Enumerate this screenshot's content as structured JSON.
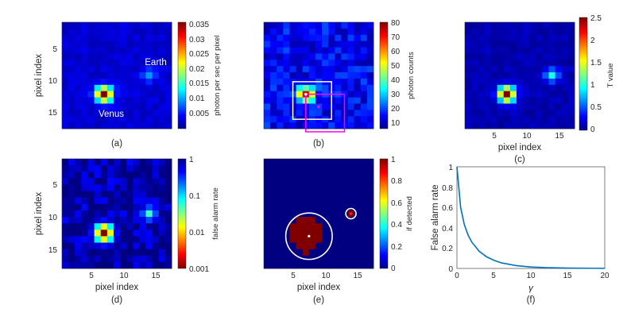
{
  "figure": {
    "panels": [
      {
        "id": "a",
        "caption": "(a)",
        "type": "heatmap",
        "xlabel": "",
        "ylabel": "pixel index",
        "xticks": [],
        "yticks": [
          "5",
          "10",
          "15"
        ],
        "colorbar": {
          "label": "photon per sec per pixel",
          "scale": "linear",
          "ticks": [
            "0.035",
            "0.03",
            "0.025",
            "0.02",
            "0.015",
            "0.01",
            "0.005"
          ]
        },
        "annotations": [
          "Earth",
          "Venus"
        ]
      },
      {
        "id": "b",
        "caption": "(b)",
        "type": "heatmap",
        "xlabel": "",
        "ylabel": "",
        "xticks": [],
        "yticks": [],
        "colorbar": {
          "label": "photon counts",
          "scale": "linear",
          "ticks": [
            "80",
            "70",
            "60",
            "50",
            "40",
            "30",
            "20",
            "10"
          ]
        },
        "annotations": []
      },
      {
        "id": "c",
        "caption": "(c)",
        "type": "heatmap",
        "xlabel": "pixel index",
        "ylabel": "",
        "xticks": [
          "5",
          "10",
          "15"
        ],
        "yticks": [],
        "colorbar": {
          "label": "T value",
          "scale": "linear",
          "ticks": [
            "2.5",
            "2",
            "1.5",
            "1",
            "0.5",
            "0"
          ]
        },
        "annotations": []
      },
      {
        "id": "d",
        "caption": "(d)",
        "type": "heatmap",
        "xlabel": "pixel index",
        "ylabel": "pixel index",
        "xticks": [
          "5",
          "10",
          "15"
        ],
        "yticks": [
          "5",
          "10",
          "15"
        ],
        "colorbar": {
          "label": "false alarm rate",
          "scale": "log",
          "ticks": [
            "1",
            "0.1",
            "0.01",
            "0.001"
          ]
        },
        "annotations": []
      },
      {
        "id": "e",
        "caption": "(e)",
        "type": "heatmap",
        "xlabel": "pixel index",
        "ylabel": "",
        "xticks": [
          "5",
          "10",
          "15"
        ],
        "yticks": [],
        "colorbar": {
          "label": "if detected",
          "scale": "linear",
          "ticks": [
            "1",
            "0.8",
            "0.6",
            "0.4",
            "0.2",
            "0"
          ]
        },
        "annotations": []
      },
      {
        "id": "f",
        "caption": "(f)",
        "type": "line",
        "xlabel": "γ",
        "ylabel": "False alarm rate",
        "xticks": [
          "0",
          "5",
          "10",
          "15",
          "20"
        ],
        "yticks": [
          "1",
          "0.8",
          "0.6",
          "0.4",
          "0.2",
          "0"
        ],
        "annotations": []
      }
    ]
  },
  "chart_data": [
    {
      "type": "heatmap",
      "panel": "a",
      "grid": [
        17,
        17
      ],
      "title": "",
      "ylabel": "pixel index",
      "colorbar_label": "photon per sec per pixel",
      "clim": [
        0.0,
        0.037
      ],
      "sources": [
        {
          "name": "Venus",
          "x": 7,
          "y": 12,
          "peak": 0.037,
          "spread": 0.9
        },
        {
          "name": "Earth",
          "x": 14,
          "y": 9,
          "peak": 0.011,
          "spread": 0.75
        }
      ],
      "background": 0.003
    },
    {
      "type": "heatmap",
      "panel": "b",
      "grid": [
        17,
        17
      ],
      "title": "",
      "colorbar_label": "photon counts",
      "clim": [
        5,
        80
      ],
      "sources": [
        {
          "x": 7,
          "y": 12,
          "peak": 72,
          "spread": 0.9
        },
        {
          "x": 14,
          "y": 9,
          "peak": 22,
          "spread": 0.75
        }
      ],
      "background": 14,
      "overlays": [
        {
          "shape": "square",
          "color": "white",
          "x_range": [
            4.5,
            10.5
          ],
          "y_range": [
            9.5,
            15.5
          ]
        },
        {
          "shape": "square",
          "color": "magenta",
          "x_range": [
            6.5,
            12.5
          ],
          "y_range": [
            11.5,
            17.5
          ]
        },
        {
          "shape": "marker",
          "color": "white",
          "x": 7,
          "y": 12
        },
        {
          "shape": "marker",
          "color": "magenta",
          "x": 9,
          "y": 14
        }
      ]
    },
    {
      "type": "heatmap",
      "panel": "c",
      "grid": [
        17,
        17
      ],
      "title": "",
      "xlabel": "pixel index",
      "colorbar_label": "T value",
      "clim": [
        0,
        2.5
      ],
      "sources": [
        {
          "x": 7,
          "y": 12,
          "peak": 2.5,
          "spread": 0.9
        },
        {
          "x": 14,
          "y": 9,
          "peak": 1.05,
          "spread": 0.75
        }
      ],
      "background": 0.12
    },
    {
      "type": "heatmap",
      "panel": "d",
      "grid": [
        17,
        17
      ],
      "title": "",
      "xlabel": "pixel index",
      "ylabel": "pixel index",
      "colorbar_label": "false alarm rate",
      "scale": "log",
      "clim": [
        0.001,
        1
      ],
      "sources": [
        {
          "x": 7,
          "y": 12,
          "min_rate": 0.001,
          "spread": 1.0
        },
        {
          "x": 14,
          "y": 9,
          "min_rate": 0.05,
          "spread": 0.8
        }
      ],
      "background": 0.8
    },
    {
      "type": "heatmap",
      "panel": "e",
      "grid": [
        17,
        17
      ],
      "title": "",
      "xlabel": "pixel index",
      "colorbar_label": "if detected",
      "clim": [
        0,
        1
      ],
      "detected_pixels": [
        [
          10,
          6
        ],
        [
          10,
          7
        ],
        [
          10,
          8
        ],
        [
          11,
          5
        ],
        [
          11,
          6
        ],
        [
          11,
          7
        ],
        [
          11,
          8
        ],
        [
          11,
          9
        ],
        [
          12,
          5
        ],
        [
          12,
          6
        ],
        [
          12,
          7
        ],
        [
          12,
          8
        ],
        [
          12,
          9
        ],
        [
          13,
          5
        ],
        [
          13,
          6
        ],
        [
          13,
          7
        ],
        [
          13,
          8
        ],
        [
          13,
          9
        ],
        [
          14,
          6
        ],
        [
          14,
          7
        ],
        [
          14,
          8
        ],
        [
          15,
          7
        ],
        [
          9,
          14
        ]
      ],
      "circles": [
        {
          "x": 7.5,
          "y": 12.5,
          "r": 3.6,
          "color": "white"
        },
        {
          "x": 14,
          "y": 9,
          "r": 0.8,
          "color": "white"
        }
      ],
      "markers": [
        {
          "x": 7.5,
          "y": 12.5,
          "color": "white"
        },
        {
          "x": 14,
          "y": 9,
          "color": "red"
        }
      ]
    },
    {
      "type": "line",
      "panel": "f",
      "title": "",
      "xlabel": "γ",
      "ylabel": "False alarm rate",
      "xlim": [
        0,
        20
      ],
      "ylim": [
        0,
        1
      ],
      "series": [
        {
          "name": "false alarm rate",
          "color": "#0072BD",
          "x": [
            0,
            0.5,
            1,
            1.5,
            2,
            3,
            4,
            5,
            6,
            8,
            10,
            12,
            15,
            20
          ],
          "y": [
            1,
            0.6,
            0.43,
            0.33,
            0.26,
            0.17,
            0.115,
            0.08,
            0.055,
            0.028,
            0.014,
            0.008,
            0.004,
            0.001
          ]
        }
      ]
    }
  ]
}
